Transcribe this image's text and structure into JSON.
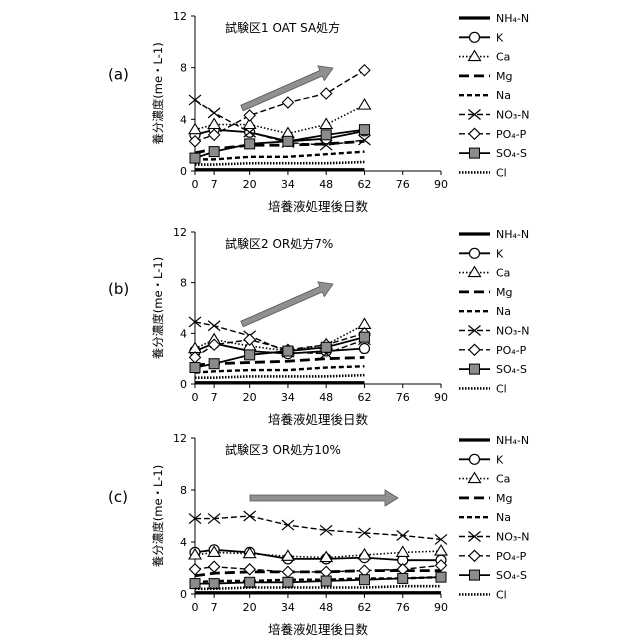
{
  "x_ticks": [
    "0",
    "7",
    "20",
    "34",
    "48",
    "62",
    "76",
    "90"
  ],
  "y_ticks": [
    "0",
    "4",
    "8",
    "12"
  ],
  "ylabel": "養分濃度(me・L-1)",
  "xlabel": "培養液処理後日数",
  "legend": [
    {
      "label": "NH₄-N",
      "style": "solid-thick"
    },
    {
      "label": "K",
      "style": "solid-circle"
    },
    {
      "label": "Ca",
      "style": "dotted-triangle"
    },
    {
      "label": "Mg",
      "style": "longdash"
    },
    {
      "label": "Na",
      "style": "dash"
    },
    {
      "label": "NO₃-N",
      "style": "dash-x"
    },
    {
      "label": "PO₄-P",
      "style": "dash-diamond"
    },
    {
      "label": "SO₄-S",
      "style": "solid-square"
    },
    {
      "label": "Cl",
      "style": "dotted"
    }
  ],
  "colors": {
    "line": "#000000",
    "arrow": "#909090",
    "square_fill": "#8c8c8c"
  },
  "chart_data": [
    {
      "panel_label": "(a)",
      "title": "試験区1 OAT SA処方",
      "type": "line",
      "ylim": [
        0,
        12
      ],
      "x": [
        0,
        7,
        20,
        34,
        48,
        62
      ],
      "arrow_trend": "up",
      "series": [
        {
          "name": "NH₄-N",
          "values": [
            0.1,
            0.1,
            0.1,
            0.1,
            0.1,
            0.1
          ]
        },
        {
          "name": "K",
          "values": [
            2.8,
            3.2,
            3.0,
            2.3,
            2.5,
            3.1
          ]
        },
        {
          "name": "Ca",
          "values": [
            3.2,
            3.6,
            3.6,
            2.9,
            3.6,
            5.1
          ]
        },
        {
          "name": "Mg",
          "values": [
            1.4,
            1.7,
            2.0,
            2.0,
            2.1,
            2.3
          ]
        },
        {
          "name": "Na",
          "values": [
            0.9,
            0.9,
            1.1,
            1.1,
            1.3,
            1.5
          ]
        },
        {
          "name": "NO₃-N",
          "values": [
            5.5,
            4.5,
            3.0,
            2.2,
            2.0,
            2.4
          ]
        },
        {
          "name": "PO₄-P",
          "values": [
            2.3,
            2.8,
            4.3,
            5.3,
            6.0,
            7.8
          ]
        },
        {
          "name": "SO₄-S",
          "values": [
            1.0,
            1.5,
            2.1,
            2.3,
            2.8,
            3.2
          ]
        },
        {
          "name": "Cl",
          "values": [
            0.5,
            0.5,
            0.6,
            0.6,
            0.6,
            0.7
          ]
        }
      ]
    },
    {
      "panel_label": "(b)",
      "title": "試験区2 OR処方7%",
      "type": "line",
      "ylim": [
        0,
        12
      ],
      "x": [
        0,
        7,
        20,
        34,
        48,
        62
      ],
      "arrow_trend": "up",
      "series": [
        {
          "name": "NH₄-N",
          "values": [
            0.1,
            0.1,
            0.1,
            0.1,
            0.1,
            0.1
          ]
        },
        {
          "name": "K",
          "values": [
            2.6,
            3.2,
            2.6,
            2.4,
            2.6,
            2.8
          ]
        },
        {
          "name": "Ca",
          "values": [
            2.8,
            3.5,
            3.0,
            2.6,
            3.1,
            4.7
          ]
        },
        {
          "name": "Mg",
          "values": [
            1.5,
            1.6,
            1.7,
            1.8,
            2.0,
            2.1
          ]
        },
        {
          "name": "Na",
          "values": [
            0.9,
            1.0,
            1.1,
            1.1,
            1.3,
            1.4
          ]
        },
        {
          "name": "NO₃-N",
          "values": [
            4.9,
            4.6,
            3.8,
            2.5,
            2.4,
            3.5
          ]
        },
        {
          "name": "PO₄-P",
          "values": [
            2.1,
            3.1,
            3.5,
            2.7,
            3.1,
            4.0
          ]
        },
        {
          "name": "SO₄-S",
          "values": [
            1.3,
            1.6,
            2.3,
            2.6,
            2.9,
            3.7
          ]
        },
        {
          "name": "Cl",
          "values": [
            0.5,
            0.5,
            0.6,
            0.6,
            0.6,
            0.7
          ]
        }
      ]
    },
    {
      "panel_label": "(c)",
      "title": "試験区3 OR処方10%",
      "type": "line",
      "ylim": [
        0,
        12
      ],
      "x": [
        0,
        7,
        20,
        34,
        48,
        62,
        76,
        90
      ],
      "arrow_trend": "flat",
      "series": [
        {
          "name": "NH₄-N",
          "values": [
            0.1,
            0.1,
            0.1,
            0.1,
            0.1,
            0.1,
            0.1,
            0.1
          ]
        },
        {
          "name": "K",
          "values": [
            3.2,
            3.4,
            3.2,
            2.7,
            2.7,
            2.8,
            2.6,
            2.6
          ]
        },
        {
          "name": "Ca",
          "values": [
            3.0,
            3.2,
            3.1,
            2.9,
            2.8,
            3.0,
            3.2,
            3.3
          ]
        },
        {
          "name": "Mg",
          "values": [
            1.4,
            1.6,
            1.7,
            1.7,
            1.7,
            1.8,
            1.8,
            1.8
          ]
        },
        {
          "name": "Na",
          "values": [
            0.9,
            1.0,
            1.0,
            1.1,
            1.1,
            1.2,
            1.2,
            1.3
          ]
        },
        {
          "name": "NO₃-N",
          "values": [
            5.8,
            5.8,
            6.0,
            5.3,
            4.9,
            4.7,
            4.5,
            4.2
          ]
        },
        {
          "name": "PO₄-P",
          "values": [
            1.9,
            2.1,
            1.9,
            1.7,
            1.7,
            1.8,
            1.9,
            2.2
          ]
        },
        {
          "name": "SO₄-S",
          "values": [
            0.8,
            0.8,
            0.9,
            0.9,
            1.0,
            1.1,
            1.2,
            1.3
          ]
        },
        {
          "name": "Cl",
          "values": [
            0.4,
            0.4,
            0.5,
            0.5,
            0.5,
            0.5,
            0.6,
            0.6
          ]
        }
      ]
    }
  ]
}
